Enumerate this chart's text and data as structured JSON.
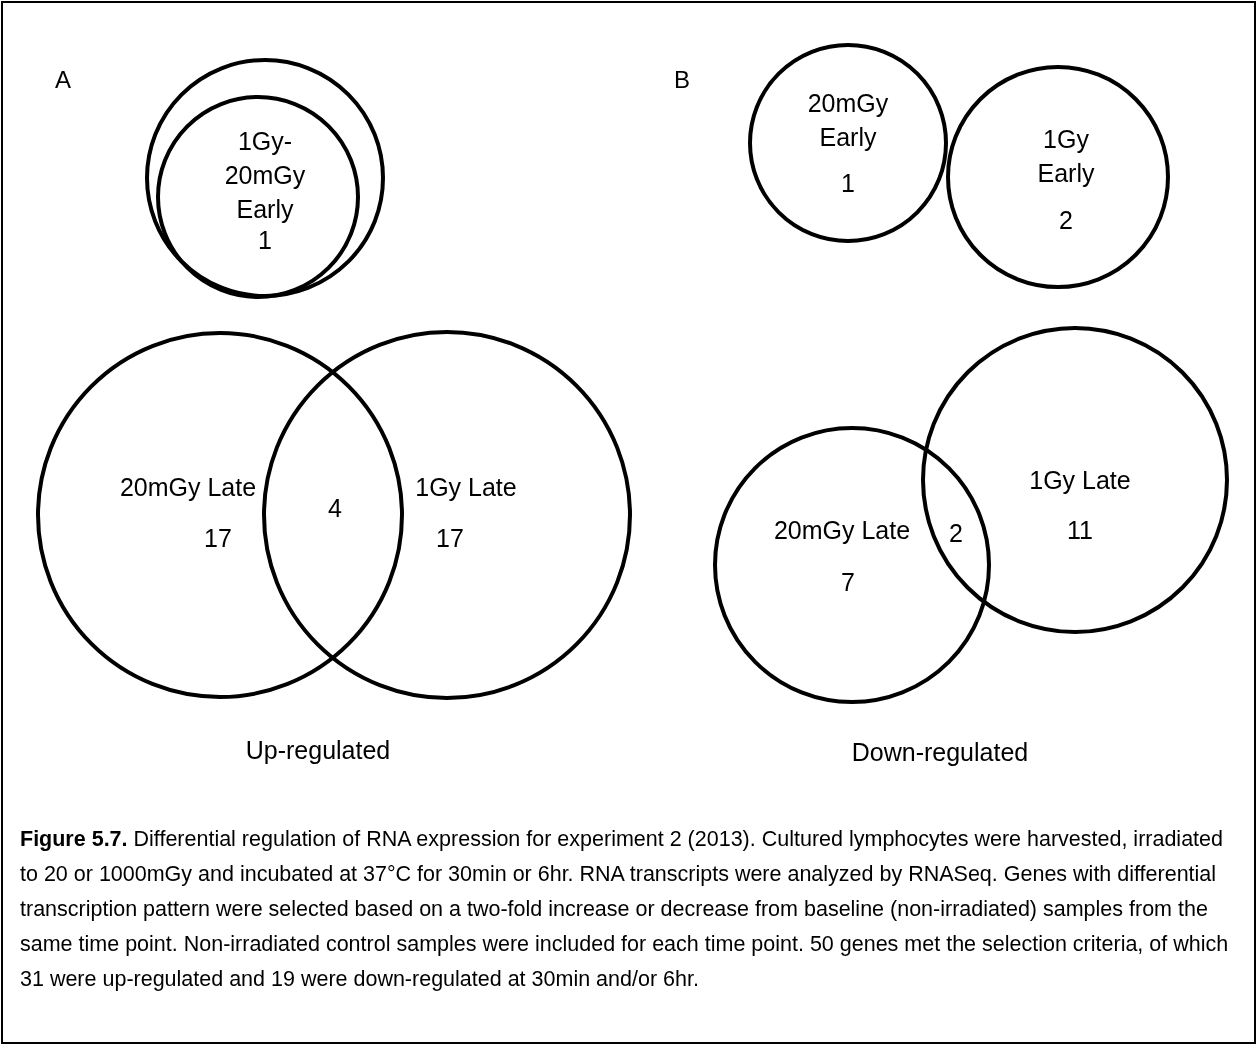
{
  "chart_data": [
    {
      "type": "other",
      "title": "A",
      "categories": [
        "1Gy-20mGy Early"
      ],
      "values": [
        1
      ],
      "data_labels": true
    },
    {
      "type": "other",
      "title": "B",
      "categories": [
        "20mGy Early",
        "1Gy Early"
      ],
      "values": [
        1,
        2
      ],
      "data_labels": true
    },
    {
      "type": "other",
      "xlabel": "Up-regulated",
      "categories": [
        "20mGy Late",
        "1Gy Late"
      ],
      "values": [
        17,
        17
      ],
      "data_labels": true,
      "annotations": [
        "4"
      ]
    },
    {
      "type": "other",
      "xlabel": "Down-regulated",
      "categories": [
        "20mGy Late",
        "1Gy Late"
      ],
      "values": [
        7,
        11
      ],
      "data_labels": true,
      "annotations": [
        "2"
      ]
    },
    {
      "type": "other",
      "annotations": [
        "Figure 5.7.",
        "Differential regulation of RNA expression for experiment 2 (2013). Cultured lymphocytes were harvested, irradiated to 20 or 1000mGy and incubated at 37°C for 30min or 6hr. RNA transcripts were analyzed by RNASeq. Genes with differential transcription pattern were selected based on a two-fold increase or decrease from baseline (non-irradiated) samples from the same time point. Non-irradiated control samples were included for each time point. 50 genes met the selection criteria, of which 31 were up-regulated and 19 were down-regulated at 30min and/or 6hr."
      ]
    }
  ]
}
